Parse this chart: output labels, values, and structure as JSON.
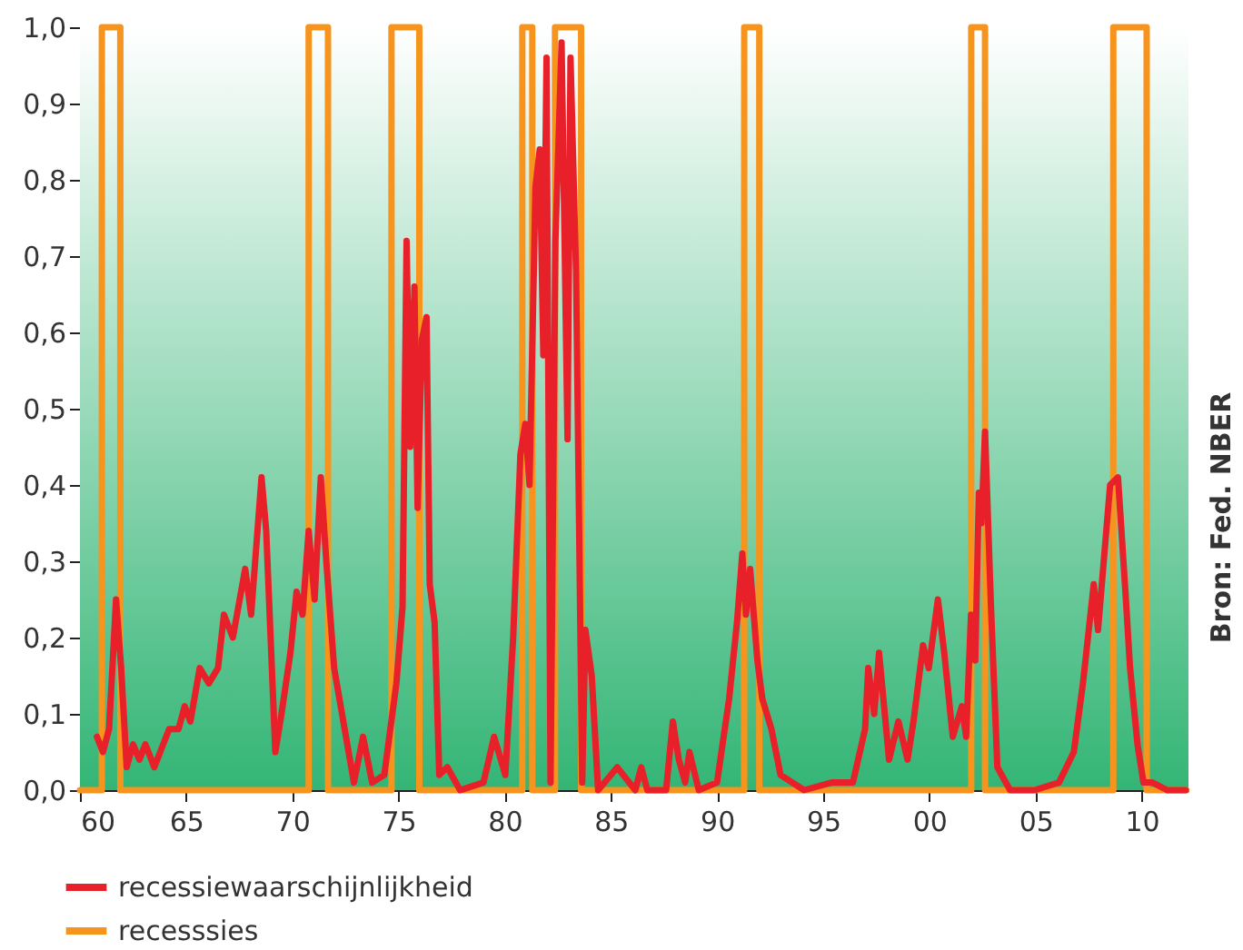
{
  "chart_data": {
    "type": "line",
    "annotations": [
      "Bron: Fed. NBER"
    ],
    "xlim": [
      1960,
      2012.2
    ],
    "ylim": [
      0,
      1
    ],
    "xticks": [
      {
        "value": 1960,
        "label": "60"
      },
      {
        "value": 1965,
        "label": "65"
      },
      {
        "value": 1970,
        "label": "70"
      },
      {
        "value": 1975,
        "label": "75"
      },
      {
        "value": 1980,
        "label": "80"
      },
      {
        "value": 1985,
        "label": "85"
      },
      {
        "value": 1990,
        "label": "90"
      },
      {
        "value": 1995,
        "label": "95"
      },
      {
        "value": 2000,
        "label": "00"
      },
      {
        "value": 2005,
        "label": "05"
      },
      {
        "value": 2010,
        "label": "10"
      }
    ],
    "yticks": [
      {
        "value": 0,
        "label": "0,0"
      },
      {
        "value": 0.1,
        "label": "0,1"
      },
      {
        "value": 0.2,
        "label": "0,2"
      },
      {
        "value": 0.3,
        "label": "0,3"
      },
      {
        "value": 0.4,
        "label": "0,4"
      },
      {
        "value": 0.5,
        "label": "0,5"
      },
      {
        "value": 0.6,
        "label": "0,6"
      },
      {
        "value": 0.7,
        "label": "0,7"
      },
      {
        "value": 0.8,
        "label": "0,8"
      },
      {
        "value": 0.9,
        "label": "0,9"
      },
      {
        "value": 1,
        "label": "1,0"
      }
    ],
    "grid": false,
    "legend": "bottom",
    "marker": "none",
    "line_style": "solid",
    "series": [
      {
        "name": "recessiewaarschijnlijkheid",
        "color": "#e8202a",
        "x": [
          1960.8,
          1961.08,
          1961.37,
          1961.7,
          1961.94,
          1962.2,
          1962.5,
          1962.8,
          1963.08,
          1963.5,
          1964.2,
          1964.64,
          1964.93,
          1965.2,
          1965.64,
          1966.07,
          1966.5,
          1966.78,
          1967.2,
          1967.78,
          1968.06,
          1968.55,
          1968.77,
          1969.2,
          1969.49,
          1969.91,
          1970.2,
          1970.48,
          1970.77,
          1971.05,
          1971.34,
          1971.6,
          1971.97,
          1972.34,
          1972.9,
          1973.33,
          1973.76,
          1974.33,
          1974.9,
          1975.19,
          1975.38,
          1975.55,
          1975.75,
          1975.9,
          1976.1,
          1976.32,
          1976.47,
          1976.7,
          1976.92,
          1977.3,
          1977.9,
          1979.0,
          1979.5,
          1980.03,
          1980.4,
          1980.74,
          1980.97,
          1981.17,
          1981.45,
          1981.65,
          1981.82,
          1981.97,
          1982.16,
          1982.39,
          1982.68,
          1982.96,
          1983.1,
          1983.36,
          1983.65,
          1983.8,
          1984.1,
          1984.4,
          1985.0,
          1985.3,
          1986.15,
          1986.43,
          1986.72,
          1987.6,
          1987.92,
          1988.2,
          1988.5,
          1988.7,
          1989.14,
          1990.0,
          1990.57,
          1990.94,
          1991.19,
          1991.36,
          1991.56,
          1991.9,
          1992.13,
          1992.56,
          1992.99,
          1994.1,
          1995.4,
          1996.4,
          1996.97,
          1997.12,
          1997.4,
          1997.63,
          1998.1,
          1998.54,
          1998.97,
          1999.25,
          1999.7,
          1999.97,
          2000.4,
          2000.7,
          2001.1,
          2001.53,
          2001.73,
          2001.96,
          2002.16,
          2002.33,
          2002.45,
          2002.62,
          2002.9,
          2003.2,
          2003.8,
          2004.95,
          2006.1,
          2006.8,
          2007.23,
          2007.74,
          2007.94,
          2008.3,
          2008.51,
          2008.88,
          2009.23,
          2009.45,
          2009.8,
          2010.08,
          2010.5,
          2011.2,
          2012.07
        ],
        "values": [
          0.07,
          0.05,
          0.08,
          0.25,
          0.16,
          0.03,
          0.06,
          0.04,
          0.06,
          0.03,
          0.08,
          0.08,
          0.11,
          0.09,
          0.16,
          0.14,
          0.16,
          0.23,
          0.2,
          0.29,
          0.23,
          0.41,
          0.34,
          0.05,
          0.1,
          0.18,
          0.26,
          0.23,
          0.34,
          0.25,
          0.41,
          0.3,
          0.16,
          0.1,
          0.01,
          0.07,
          0.01,
          0.02,
          0.14,
          0.24,
          0.72,
          0.45,
          0.66,
          0.37,
          0.59,
          0.62,
          0.27,
          0.22,
          0.02,
          0.03,
          0.0,
          0.01,
          0.07,
          0.02,
          0.2,
          0.44,
          0.48,
          0.4,
          0.79,
          0.84,
          0.57,
          0.96,
          0.01,
          0.72,
          0.98,
          0.46,
          0.96,
          0.68,
          0.01,
          0.21,
          0.15,
          0.0,
          0.02,
          0.03,
          0.0,
          0.03,
          0.0,
          0.0,
          0.09,
          0.04,
          0.01,
          0.05,
          0.0,
          0.01,
          0.12,
          0.22,
          0.31,
          0.23,
          0.29,
          0.17,
          0.12,
          0.08,
          0.02,
          0.0,
          0.01,
          0.01,
          0.08,
          0.16,
          0.1,
          0.18,
          0.04,
          0.09,
          0.04,
          0.09,
          0.19,
          0.16,
          0.25,
          0.18,
          0.07,
          0.11,
          0.07,
          0.23,
          0.17,
          0.39,
          0.35,
          0.47,
          0.24,
          0.03,
          0.0,
          0.0,
          0.01,
          0.05,
          0.14,
          0.27,
          0.21,
          0.33,
          0.4,
          0.41,
          0.26,
          0.16,
          0.06,
          0.01,
          0.01,
          0.0,
          0.0
        ]
      },
      {
        "name": "recesssies",
        "color": "#f7941d",
        "type": "step",
        "x": [
          1960,
          1961.03,
          1961.9,
          1970.77,
          1971.68,
          1974.67,
          1975.98,
          1980.83,
          1981.3,
          1982.37,
          1983.6,
          1991.28,
          1991.99,
          2001.97,
          2002.62,
          2008.66,
          2010.23,
          2012.1
        ],
        "values": [
          0,
          1,
          0,
          1,
          0,
          1,
          0,
          1,
          0,
          1,
          0,
          1,
          0,
          1,
          0,
          1,
          0,
          0
        ]
      }
    ]
  }
}
